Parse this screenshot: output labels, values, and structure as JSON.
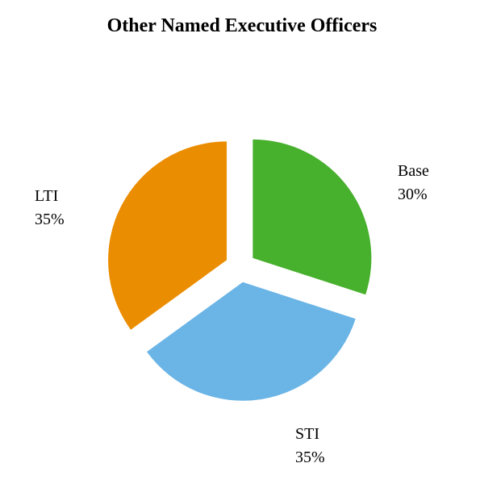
{
  "chart_data": {
    "type": "pie",
    "title": "Other Named Executive Officers",
    "slices": [
      {
        "label": "Base",
        "value": 30,
        "value_label": "30%",
        "color": "#47b02d"
      },
      {
        "label": "STI",
        "value": 35,
        "value_label": "35%",
        "color": "#6ab4e6"
      },
      {
        "label": "LTI",
        "value": 35,
        "value_label": "35%",
        "color": "#eb8d00"
      }
    ],
    "exploded": true,
    "start_angle_deg": 0,
    "direction": "clockwise"
  }
}
